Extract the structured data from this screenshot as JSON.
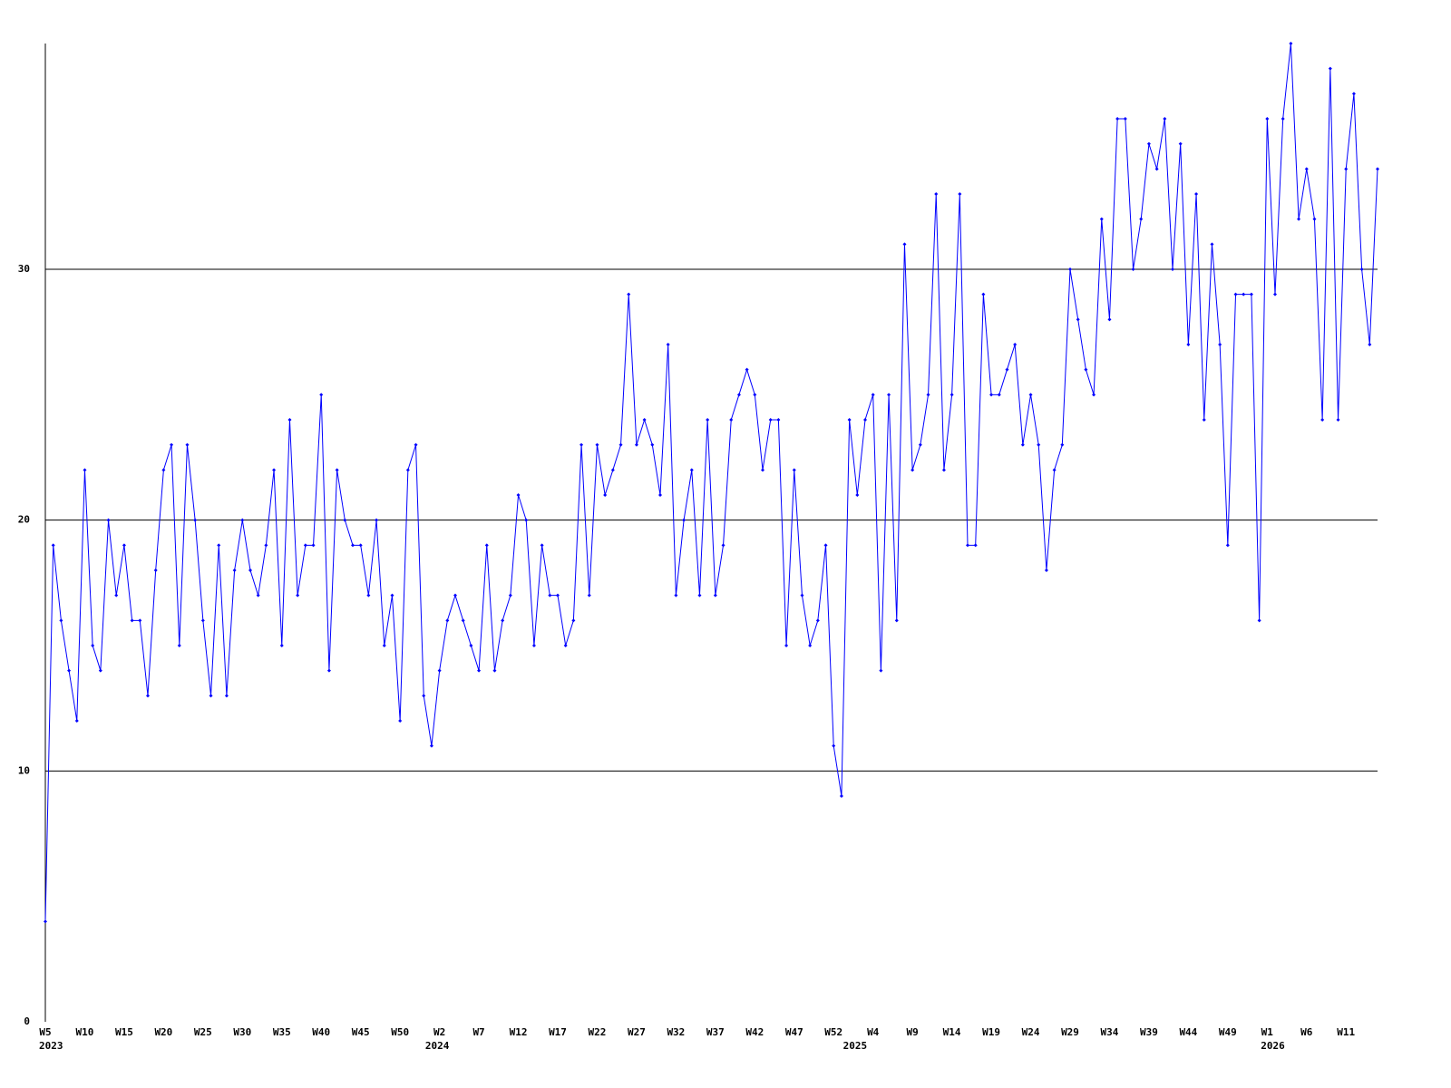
{
  "chart_data": {
    "type": "line",
    "categories": [
      "W5",
      null,
      null,
      null,
      null,
      "W10",
      null,
      null,
      null,
      null,
      "W15",
      null,
      null,
      null,
      null,
      "W20",
      null,
      null,
      null,
      null,
      "W25",
      null,
      null,
      null,
      null,
      "W30",
      null,
      null,
      null,
      null,
      "W35",
      null,
      null,
      null,
      null,
      "W40",
      null,
      null,
      null,
      null,
      "W45",
      null,
      null,
      null,
      null,
      "W50",
      null,
      null,
      null,
      null,
      "W2",
      null,
      null,
      null,
      null,
      "W7",
      null,
      null,
      null,
      null,
      "W12",
      null,
      null,
      null,
      null,
      "W17",
      null,
      null,
      null,
      null,
      "W22",
      null,
      null,
      null,
      null,
      "W27",
      null,
      null,
      null,
      null,
      "W32",
      null,
      null,
      null,
      null,
      "W37",
      null,
      null,
      null,
      null,
      "W42",
      null,
      null,
      null,
      null,
      "W47",
      null,
      null,
      null,
      null,
      "W52",
      null,
      null,
      null,
      null,
      "W4",
      null,
      null,
      null,
      null,
      "W9",
      null,
      null,
      null,
      null,
      "W14",
      null,
      null,
      null,
      null,
      "W19",
      null,
      null,
      null,
      null,
      "W24",
      null,
      null,
      null,
      null,
      "W29",
      null,
      null,
      null,
      null,
      "W34",
      null,
      null,
      null,
      null,
      "W39",
      null,
      null,
      null,
      null,
      "W44",
      null,
      null,
      null,
      null,
      "W49",
      null,
      null,
      null,
      null,
      "W1",
      null,
      null,
      null,
      null,
      "W6",
      null,
      null,
      null,
      null,
      "W11",
      null,
      null,
      null,
      null
    ],
    "category_years": [
      "2023",
      null,
      null,
      null,
      null,
      null,
      null,
      null,
      null,
      null,
      null,
      null,
      null,
      null,
      null,
      null,
      null,
      null,
      null,
      null,
      null,
      null,
      null,
      null,
      null,
      null,
      null,
      null,
      null,
      null,
      null,
      null,
      null,
      null,
      null,
      null,
      null,
      null,
      null,
      null,
      null,
      null,
      null,
      null,
      null,
      null,
      null,
      null,
      null,
      "2024",
      null,
      null,
      null,
      null,
      null,
      null,
      null,
      null,
      null,
      null,
      null,
      null,
      null,
      null,
      null,
      null,
      null,
      null,
      null,
      null,
      null,
      null,
      null,
      null,
      null,
      null,
      null,
      null,
      null,
      null,
      null,
      null,
      null,
      null,
      null,
      null,
      null,
      null,
      null,
      null,
      null,
      null,
      null,
      null,
      null,
      null,
      null,
      null,
      null,
      null,
      null,
      null,
      "2025",
      null,
      null,
      null,
      null,
      null,
      null,
      null,
      null,
      null,
      null,
      null,
      null,
      null,
      null,
      null,
      null,
      null,
      null,
      null,
      null,
      null,
      null,
      null,
      null,
      null,
      null,
      null,
      null,
      null,
      null,
      null,
      null,
      null,
      null,
      null,
      null,
      null,
      null,
      null,
      null,
      null,
      null,
      null,
      null,
      null,
      null,
      null,
      null,
      null,
      null,
      null,
      null,
      "2026",
      null,
      null,
      null,
      null,
      null,
      null,
      null,
      null,
      null,
      null,
      null,
      null,
      null,
      null
    ],
    "series": [
      {
        "color": "#0000ff",
        "values": [
          4,
          19,
          16,
          14,
          12,
          22,
          15,
          14,
          20,
          17,
          19,
          16,
          16,
          13,
          18,
          22,
          23,
          15,
          23,
          20,
          16,
          13,
          19,
          13,
          18,
          20,
          18,
          17,
          19,
          22,
          15,
          24,
          17,
          19,
          19,
          25,
          14,
          22,
          20,
          19,
          19,
          17,
          20,
          15,
          17,
          12,
          22,
          23,
          13,
          11,
          14,
          16,
          17,
          16,
          15,
          14,
          19,
          14,
          16,
          17,
          21,
          20,
          15,
          19,
          17,
          17,
          15,
          16,
          23,
          17,
          23,
          21,
          22,
          23,
          29,
          23,
          24,
          23,
          21,
          27,
          17,
          20,
          22,
          17,
          24,
          17,
          19,
          24,
          25,
          26,
          25,
          22,
          24,
          24,
          15,
          22,
          17,
          15,
          16,
          19,
          11,
          9,
          24,
          21,
          24,
          25,
          14,
          25,
          16,
          31,
          22,
          23,
          25,
          33,
          22,
          25,
          33,
          19,
          19,
          29,
          25,
          25,
          26,
          27,
          23,
          25,
          23,
          18,
          22,
          23,
          30,
          28,
          26,
          25,
          32,
          28,
          36,
          36,
          30,
          32,
          35,
          34,
          36,
          30,
          35,
          27,
          33,
          24,
          31,
          27,
          19,
          29,
          29,
          29,
          16,
          36,
          29,
          36,
          39,
          32,
          34,
          32,
          24,
          38,
          24,
          34,
          37,
          30,
          27,
          34
        ]
      }
    ],
    "ylim": [
      0,
      39
    ],
    "yticks": [
      0,
      10,
      20,
      30
    ],
    "grid": true
  }
}
